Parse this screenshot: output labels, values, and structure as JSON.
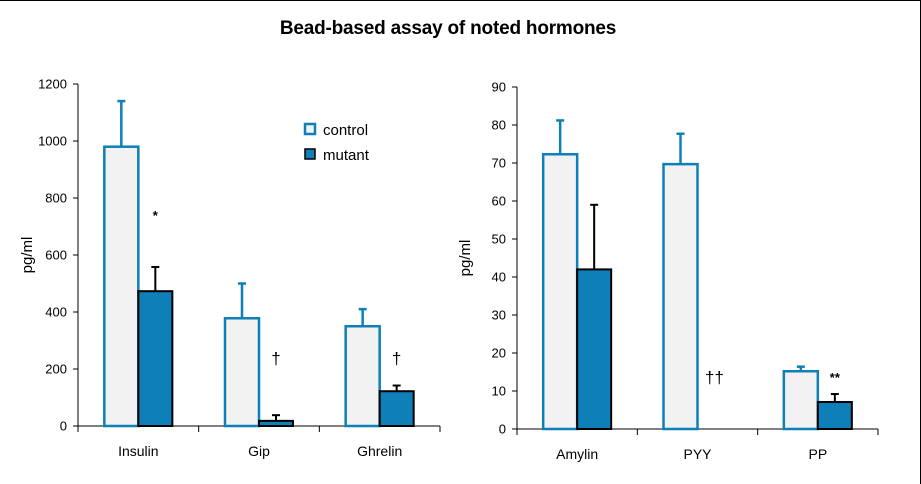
{
  "title": "Bead-based assay of noted hormones",
  "colors": {
    "control_fill": "#f2f2f2",
    "control_edge": "#0f7fb8",
    "mutant_fill": "#0f7fb8",
    "mutant_edge": "#000000",
    "error": "#000000"
  },
  "chart_data": [
    {
      "type": "bar",
      "title": "",
      "ylabel": "pg/ml",
      "xlabel": "",
      "ylim": [
        0,
        1200
      ],
      "yticks": [
        0,
        200,
        400,
        600,
        800,
        1000,
        1200
      ],
      "categories": [
        "Insulin",
        "Gip",
        "Ghrelin"
      ],
      "series": [
        {
          "name": "control",
          "values": [
            980,
            378,
            350
          ],
          "errors": [
            160,
            122,
            60
          ]
        },
        {
          "name": "mutant",
          "values": [
            473,
            18,
            122
          ],
          "errors": [
            85,
            20,
            20
          ]
        }
      ],
      "annotations": [
        "*",
        "†",
        "†"
      ],
      "legend": {
        "position": "top-right",
        "entries": [
          "control",
          "mutant"
        ]
      }
    },
    {
      "type": "bar",
      "title": "",
      "ylabel": "pg/ml",
      "xlabel": "",
      "ylim": [
        0,
        90
      ],
      "yticks": [
        0,
        10,
        20,
        30,
        40,
        50,
        60,
        70,
        80,
        90
      ],
      "categories": [
        "Amylin",
        "PYY",
        "PP"
      ],
      "series": [
        {
          "name": "control",
          "values": [
            72.3,
            69.7,
            15.2
          ],
          "errors": [
            8.9,
            8.0,
            1.2
          ]
        },
        {
          "name": "mutant",
          "values": [
            42,
            0,
            7.1
          ],
          "errors": [
            17,
            0,
            2.1
          ]
        }
      ],
      "annotations": [
        "",
        "††",
        "**"
      ]
    }
  ]
}
